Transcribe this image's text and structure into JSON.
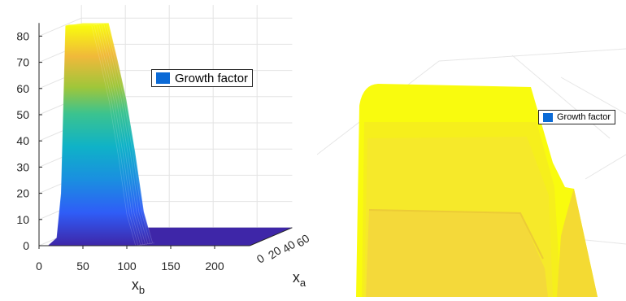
{
  "chart_data": [
    {
      "type": "surface",
      "panel": "full view",
      "legend": "Growth factor",
      "legend_position": "top-right",
      "xlabel": "x",
      "xlabel_subscript": "b",
      "ylabel": "x",
      "ylabel_subscript": "a",
      "zlabel": "",
      "xlim": [
        0,
        240
      ],
      "ylim": [
        0,
        60
      ],
      "zlim": [
        0,
        85
      ],
      "x_ticks": [
        0,
        50,
        100,
        150,
        200
      ],
      "y_ticks": [
        0,
        20,
        40,
        60
      ],
      "z_ticks": [
        0,
        10,
        20,
        30,
        40,
        50,
        60,
        70,
        80
      ],
      "grid": true,
      "colormap": "parula",
      "ridge_profile": {
        "description_values": "surface height vs x_b along the peak ridge",
        "x": [
          10,
          20,
          25,
          30,
          40,
          50,
          60,
          70,
          80,
          90,
          100,
          110,
          240
        ],
        "z": [
          0,
          3,
          20,
          84,
          84,
          84,
          84,
          70,
          55,
          35,
          12,
          0,
          0
        ]
      }
    },
    {
      "type": "surface",
      "panel": "zoomed view",
      "legend": "Growth factor",
      "legend_position": "top-right",
      "grid": true,
      "colormap": "parula"
    }
  ],
  "colors": {
    "yellow": "#f9fb0e",
    "dark_yellow": "#f4d93a",
    "floor": "#3e26a8",
    "legend_swatch": "#0b6ad6",
    "axis": "#262626",
    "grid": "#e3e3e3"
  }
}
